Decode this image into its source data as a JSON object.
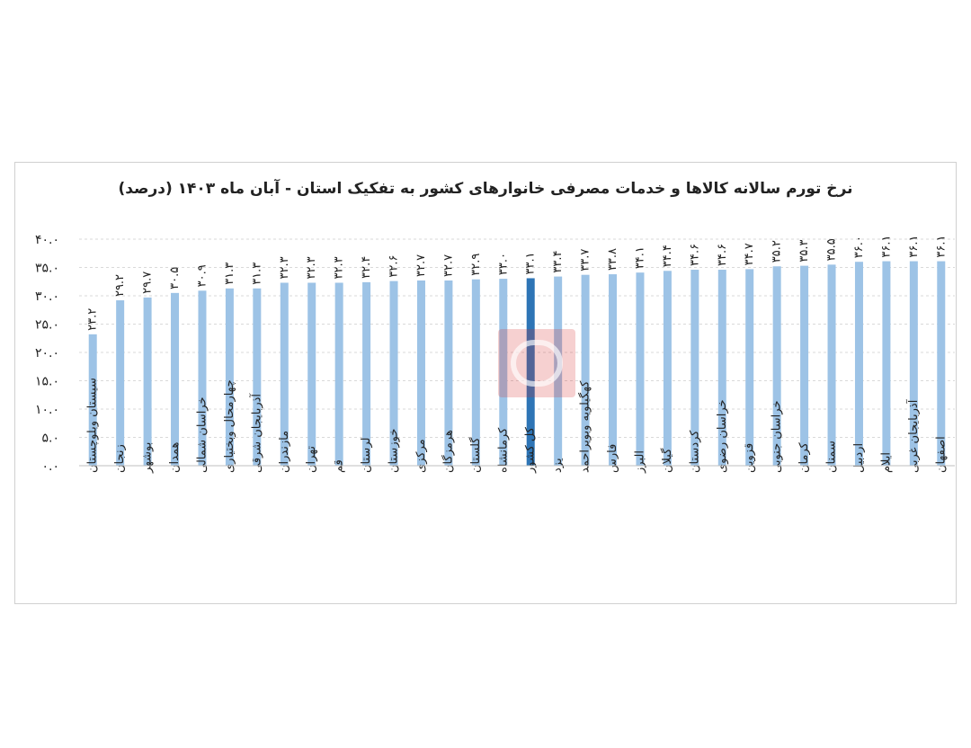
{
  "chart_data": {
    "type": "bar",
    "title": "نرخ تورم سالانه کالاها و خدمات مصرفی خانوارهای کشور به تفکیک استان - آبان ماه ۱۴۰۳ (درصد)",
    "categories": [
      "سیستان وبلوچستان",
      "زنجان",
      "بوشهر",
      "همدان",
      "خراسان شمالی",
      "چهارمحال وبختیاری",
      "آذربایجان شرقی",
      "مازندران",
      "تهران",
      "قم",
      "لرستان",
      "خوزستان",
      "مرکزی",
      "هرمزگان",
      "گلستان",
      "کرمانشاه",
      "کل کشور",
      "یزد",
      "کهگیلویه وبویراحمد",
      "فارس",
      "البرز",
      "گیلان",
      "کردستان",
      "خراسان رضوی",
      "قزوین",
      "خراسان جنوبی",
      "کرمان",
      "سمنان",
      "اردبیل",
      "ایلام",
      "آذربایجان غربی",
      "اصفهان"
    ],
    "values": [
      23.2,
      29.2,
      29.7,
      30.5,
      30.9,
      31.3,
      31.3,
      32.3,
      32.3,
      32.3,
      32.4,
      32.6,
      32.7,
      32.7,
      32.9,
      33.0,
      33.1,
      33.4,
      33.7,
      33.8,
      34.1,
      34.4,
      34.6,
      34.6,
      34.7,
      35.2,
      35.3,
      35.5,
      36.0,
      36.1,
      36.1,
      36.1
    ],
    "value_labels": [
      "۲۳.۲",
      "۲۹.۲",
      "۲۹.۷",
      "۳۰.۵",
      "۳۰.۹",
      "۳۱.۳",
      "۳۱.۳",
      "۳۲.۳",
      "۳۲.۳",
      "۳۲.۳",
      "۳۲.۴",
      "۳۲.۶",
      "۳۲.۷",
      "۳۲.۷",
      "۳۲.۹",
      "۳۳.۰",
      "۳۳.۱",
      "۳۳.۴",
      "۳۳.۷",
      "۳۳.۸",
      "۳۴.۱",
      "۳۴.۴",
      "۳۴.۶",
      "۳۴.۶",
      "۳۴.۷",
      "۳۵.۲",
      "۳۵.۳",
      "۳۵.۵",
      "۳۶.۰",
      "۳۶.۱",
      "۳۶.۱",
      "۳۶.۱"
    ],
    "highlight_index": 16,
    "yticks": [
      0,
      5,
      10,
      15,
      20,
      25,
      30,
      35,
      40
    ],
    "ytick_labels": [
      "۰.۰",
      "۵.۰",
      "۱۰.۰",
      "۱۵.۰",
      "۲۰.۰",
      "۲۵.۰",
      "۳۰.۰",
      "۳۵.۰",
      "۴۰.۰"
    ],
    "ylim": [
      0,
      40
    ],
    "xlabel": "",
    "ylabel": "",
    "grid": true,
    "legend": "none",
    "colors": {
      "bar": "#9dc3e6",
      "highlight": "#2e75b6",
      "grid": "#d9d9d9",
      "text": "#222222"
    }
  }
}
